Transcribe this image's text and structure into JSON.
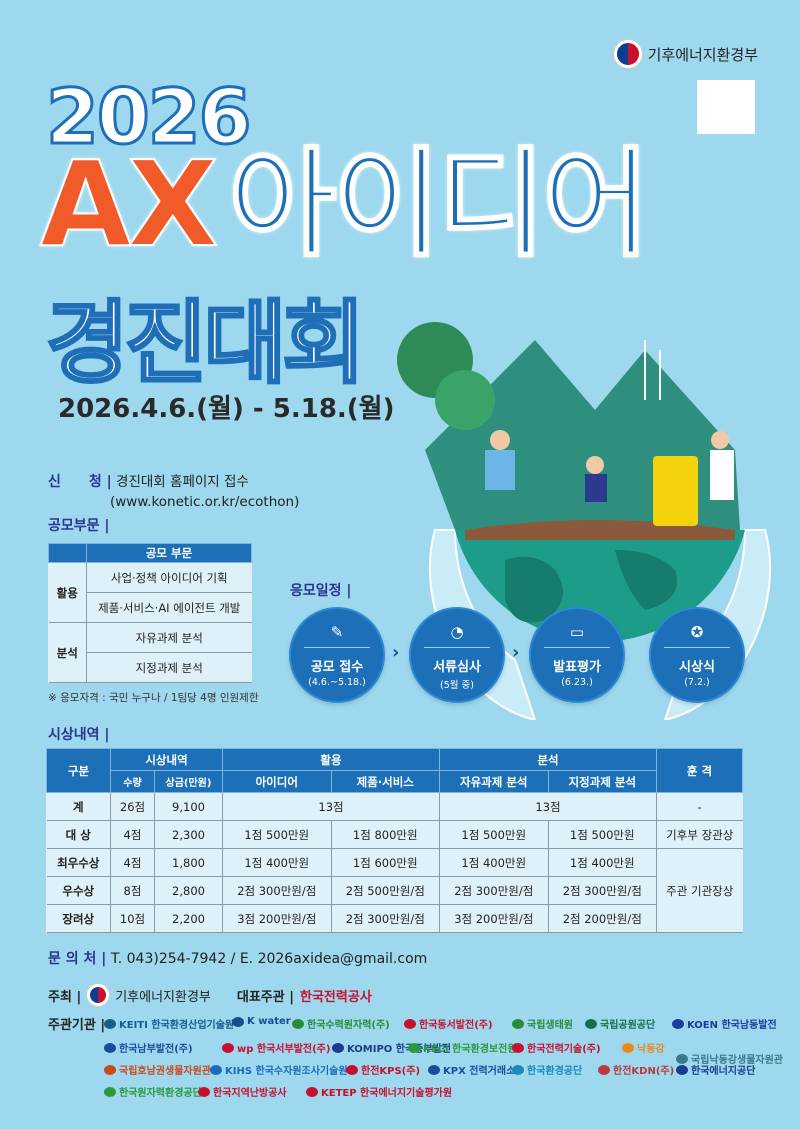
{
  "ministry": {
    "name": "기후에너지환경부",
    "qr": "qr-code"
  },
  "title": {
    "year": "2026",
    "ax": "AX",
    "idea": "아이디어",
    "contest": "경진대회"
  },
  "period": "2026.4.6.(월) - 5.18.(월)",
  "apply": {
    "label": "신　　청 |",
    "line1": "경진대회 홈페이지 접수",
    "line2": "(www.konetic.or.kr/ecothon)"
  },
  "categories": {
    "label": "공모부문 |",
    "header": "공모 부문",
    "groups": [
      {
        "name": "활용",
        "items": [
          "사업·정책 아이디어 기획",
          "제품·서비스·AI 에이전트 개발"
        ]
      },
      {
        "name": "분석",
        "items": [
          "자유과제 분석",
          "지정과제 분석"
        ]
      }
    ],
    "note": "※ 응모자격 : 국민 누구나 / 1팀당 4명 인원제한"
  },
  "schedule": {
    "label": "응모일정 |",
    "steps": [
      {
        "name": "공모 접수",
        "date": "(4.6.~5.18.)",
        "icon": "document-pen-icon"
      },
      {
        "name": "서류심사",
        "date": "(5월 중)",
        "icon": "pie-chart-icon"
      },
      {
        "name": "발표평가",
        "date": "(6.23.)",
        "icon": "monitor-chart-icon"
      },
      {
        "name": "시상식",
        "date": "(7.2.)",
        "icon": "award-ribbon-icon"
      }
    ]
  },
  "prizes": {
    "label": "시상내역 |",
    "headers": {
      "division": "구분",
      "award": "시상내역",
      "count": "수량",
      "money": "상금(만원)",
      "use": "활용",
      "idea": "아이디어",
      "product": "제품·서비스",
      "analysis": "분석",
      "free": "자유과제 분석",
      "assigned": "지정과제 분석",
      "honor": "훈 격"
    },
    "total": {
      "name": "계",
      "count": "26점",
      "money": "9,100",
      "use": "13점",
      "analysis": "13점",
      "honor": "-"
    },
    "rows": [
      {
        "name": "대 상",
        "count": "4점",
        "money": "2,300",
        "idea": "1점 500만원",
        "product": "1점 800만원",
        "free": "1점 500만원",
        "assigned": "1점 500만원"
      },
      {
        "name": "최우수상",
        "count": "4점",
        "money": "1,800",
        "idea": "1점 400만원",
        "product": "1점 600만원",
        "free": "1점 400만원",
        "assigned": "1점 400만원"
      },
      {
        "name": "우수상",
        "count": "8점",
        "money": "2,800",
        "idea": "2점 300만원/점",
        "product": "2점 500만원/점",
        "free": "2점 300만원/점",
        "assigned": "2점 300만원/점"
      },
      {
        "name": "장려상",
        "count": "10점",
        "money": "2,200",
        "idea": "3점 200만원/점",
        "product": "2점 300만원/점",
        "free": "3점 200만원/점",
        "assigned": "2점 200만원/점"
      }
    ],
    "honor_grand": "기후부 장관상",
    "honor_other": "주관 기관장상"
  },
  "contact": {
    "label": "문 의 처 |",
    "text": "T. 043)254-7942 / E. 2026axidea@gmail.com"
  },
  "host": {
    "label": "주최 |",
    "name": "기후에너지환경부",
    "lead_label": "대표주관 |",
    "lead": "한국전력공사"
  },
  "organizers": {
    "label": "주관기관 |",
    "list": [
      "KEITI 한국환경산업기술원",
      "K water",
      "한국수력원자력(주)",
      "한국동서발전(주)",
      "국립생태원",
      "국립공원공단",
      "KOEN 한국남동발전",
      "한국남부발전(주)",
      "wp 한국서부발전(주)",
      "KOMIPO 한국중부발전",
      "KECI 한국환경보전원",
      "한국전력기술(주)",
      "낙동강",
      "국립낙동강생물자원관",
      "국립호남권생물자원관",
      "KIHS 한국수자원조사기술원",
      "한전KPS(주)",
      "KPX 전력거래소",
      "한국환경공단",
      "한전KDN(주)",
      "한국에너지공단",
      "한국원자력환경공단",
      "한국지역난방공사",
      "KETEP 한국에너지기술평가원"
    ]
  },
  "colors": {
    "background": "#9ed8ee",
    "primary": "#1d70b8",
    "accent": "#f15a29",
    "label": "#2a3590"
  }
}
